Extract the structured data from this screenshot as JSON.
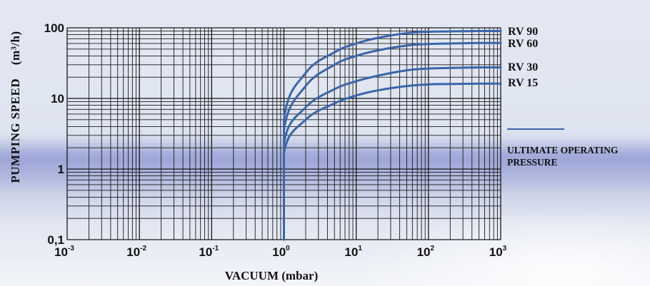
{
  "chart_data": {
    "type": "line",
    "x_scale": "log",
    "y_scale": "log",
    "xlim": [
      0.001,
      1000
    ],
    "ylim": [
      0.1,
      100
    ],
    "x_ticks": [
      {
        "base": "10",
        "exp": "-3"
      },
      {
        "base": "10",
        "exp": "-2"
      },
      {
        "base": "10",
        "exp": "-1"
      },
      {
        "base": "10",
        "exp": "0"
      },
      {
        "base": "10",
        "exp": "1"
      },
      {
        "base": "10",
        "exp": "2"
      },
      {
        "base": "10",
        "exp": "3"
      }
    ],
    "y_ticks": [
      "0,1",
      "1",
      "10",
      "100"
    ],
    "xlabel": "VACUUM  (mbar)",
    "ylabel": "PUMPING SPEED",
    "ylabel_unit": "(m³/h)",
    "grid": true,
    "series": [
      {
        "name": "RV 90",
        "x": [
          1,
          1,
          2,
          5,
          10,
          20,
          50,
          100,
          200,
          500,
          1000
        ],
        "y": [
          0.1,
          5,
          23,
          45,
          60,
          72,
          84,
          88,
          89,
          90,
          90
        ]
      },
      {
        "name": "RV 60",
        "x": [
          1,
          1,
          2,
          5,
          10,
          20,
          50,
          100,
          200,
          500,
          1000
        ],
        "y": [
          0.1,
          3.5,
          15,
          30,
          40,
          48,
          56,
          59,
          60,
          61,
          61
        ]
      },
      {
        "name": "RV 30",
        "x": [
          1,
          1,
          2,
          5,
          10,
          20,
          50,
          100,
          200,
          500,
          1000
        ],
        "y": [
          0.1,
          2.3,
          7.5,
          13.5,
          17.5,
          21,
          25,
          26.5,
          27,
          27.5,
          27.5
        ]
      },
      {
        "name": "RV 15",
        "x": [
          1,
          1,
          2,
          5,
          10,
          20,
          50,
          100,
          200,
          500,
          1000
        ],
        "y": [
          0.1,
          1.7,
          5,
          8.5,
          11,
          13,
          15,
          15.8,
          16,
          16.2,
          16.2
        ]
      }
    ],
    "line_color": "#3a66a8",
    "legend": {
      "label": "ULTIMATE OPERATING PRESSURE",
      "placement": "right"
    }
  }
}
